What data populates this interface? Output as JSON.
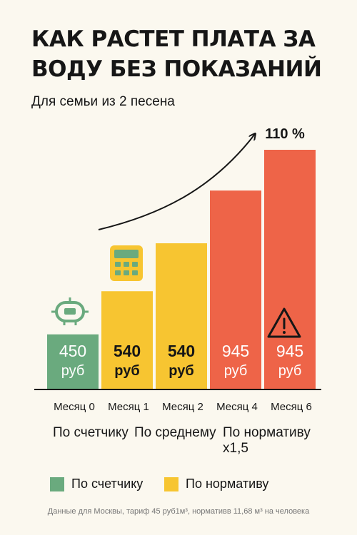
{
  "header": {
    "title": "КАК РАСТЕТ ПЛАТА ЗА ВОДУ БЕЗ ПОКАЗАНИЙ",
    "subtitle": "Для семьи из 2 песена"
  },
  "groups": [
    "По счетчику",
    "По среднему",
    "По нормативу x1,5"
  ],
  "legend": [
    {
      "label": "По счетчику",
      "color": "#6aaa7e"
    },
    {
      "label": "По нормативу",
      "color": "#f7c531"
    }
  ],
  "footnote": "Данные для Москвы, тариф 45 руб1м³, нормативв 11,68 м³ на человека",
  "chart_data": {
    "type": "bar",
    "title": "КАК РАСТЕТ ПЛАТА ЗА ВОДУ БЕЗ ПОКАЗАНИЙ",
    "subtitle": "Для семьи из 2 песена",
    "categories": [
      "Месяц 0",
      "Месяц 1",
      "Месяц 2",
      "Месяц 4",
      "Месяц 6"
    ],
    "values": [
      450,
      540,
      540,
      945,
      945
    ],
    "value_labels": [
      "450",
      "540",
      "540",
      "945",
      "945"
    ],
    "unit": "руб",
    "colors": [
      "#6aaa7e",
      "#f7c531",
      "#f7c531",
      "#ee6448",
      "#ee6448"
    ],
    "label_colors": [
      "#ffffff",
      "#161616",
      "#161616",
      "#ffffff",
      "#ffffff"
    ],
    "heights": [
      0.23,
      0.41,
      0.61,
      0.83,
      1.0
    ],
    "annotation": "110 %",
    "icons": [
      "robot-icon",
      "calculator-icon",
      null,
      null,
      "warning-icon"
    ],
    "ylim": [
      0,
      1
    ],
    "grid": false,
    "legend_position": "bottom"
  }
}
